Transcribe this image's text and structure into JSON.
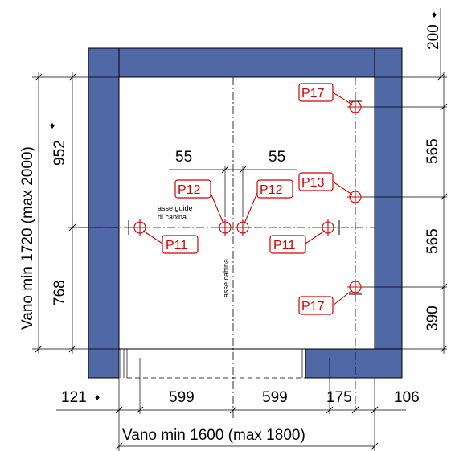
{
  "dimensions": {
    "top_200": "200",
    "left_952": "952",
    "left_768": "768",
    "vertical_total": "Vano min 1720 (max 2000)",
    "right_565_upper": "565",
    "right_565_lower": "565",
    "right_390": "390",
    "top_55_left": "55",
    "top_55_right": "55",
    "bottom_121": "121",
    "bottom_599_left": "599",
    "bottom_599_right": "599",
    "bottom_175": "175",
    "bottom_106": "106",
    "horizontal_total": "Vano min 1600 (max 1800)",
    "diamond": "♦"
  },
  "labels": {
    "guide_axis_line1": "asse guide",
    "guide_axis_line2": "di cabina",
    "car_axis": "asse cabina"
  },
  "tags": {
    "p17_top": "P17",
    "p13": "P13",
    "p12_left": "P12",
    "p12_right": "P12",
    "p11_left": "P11",
    "p11_right": "P11",
    "p17_bottom": "P17"
  },
  "colors": {
    "wall": "#5168a6",
    "tag": "#d40000",
    "line": "#000000"
  }
}
